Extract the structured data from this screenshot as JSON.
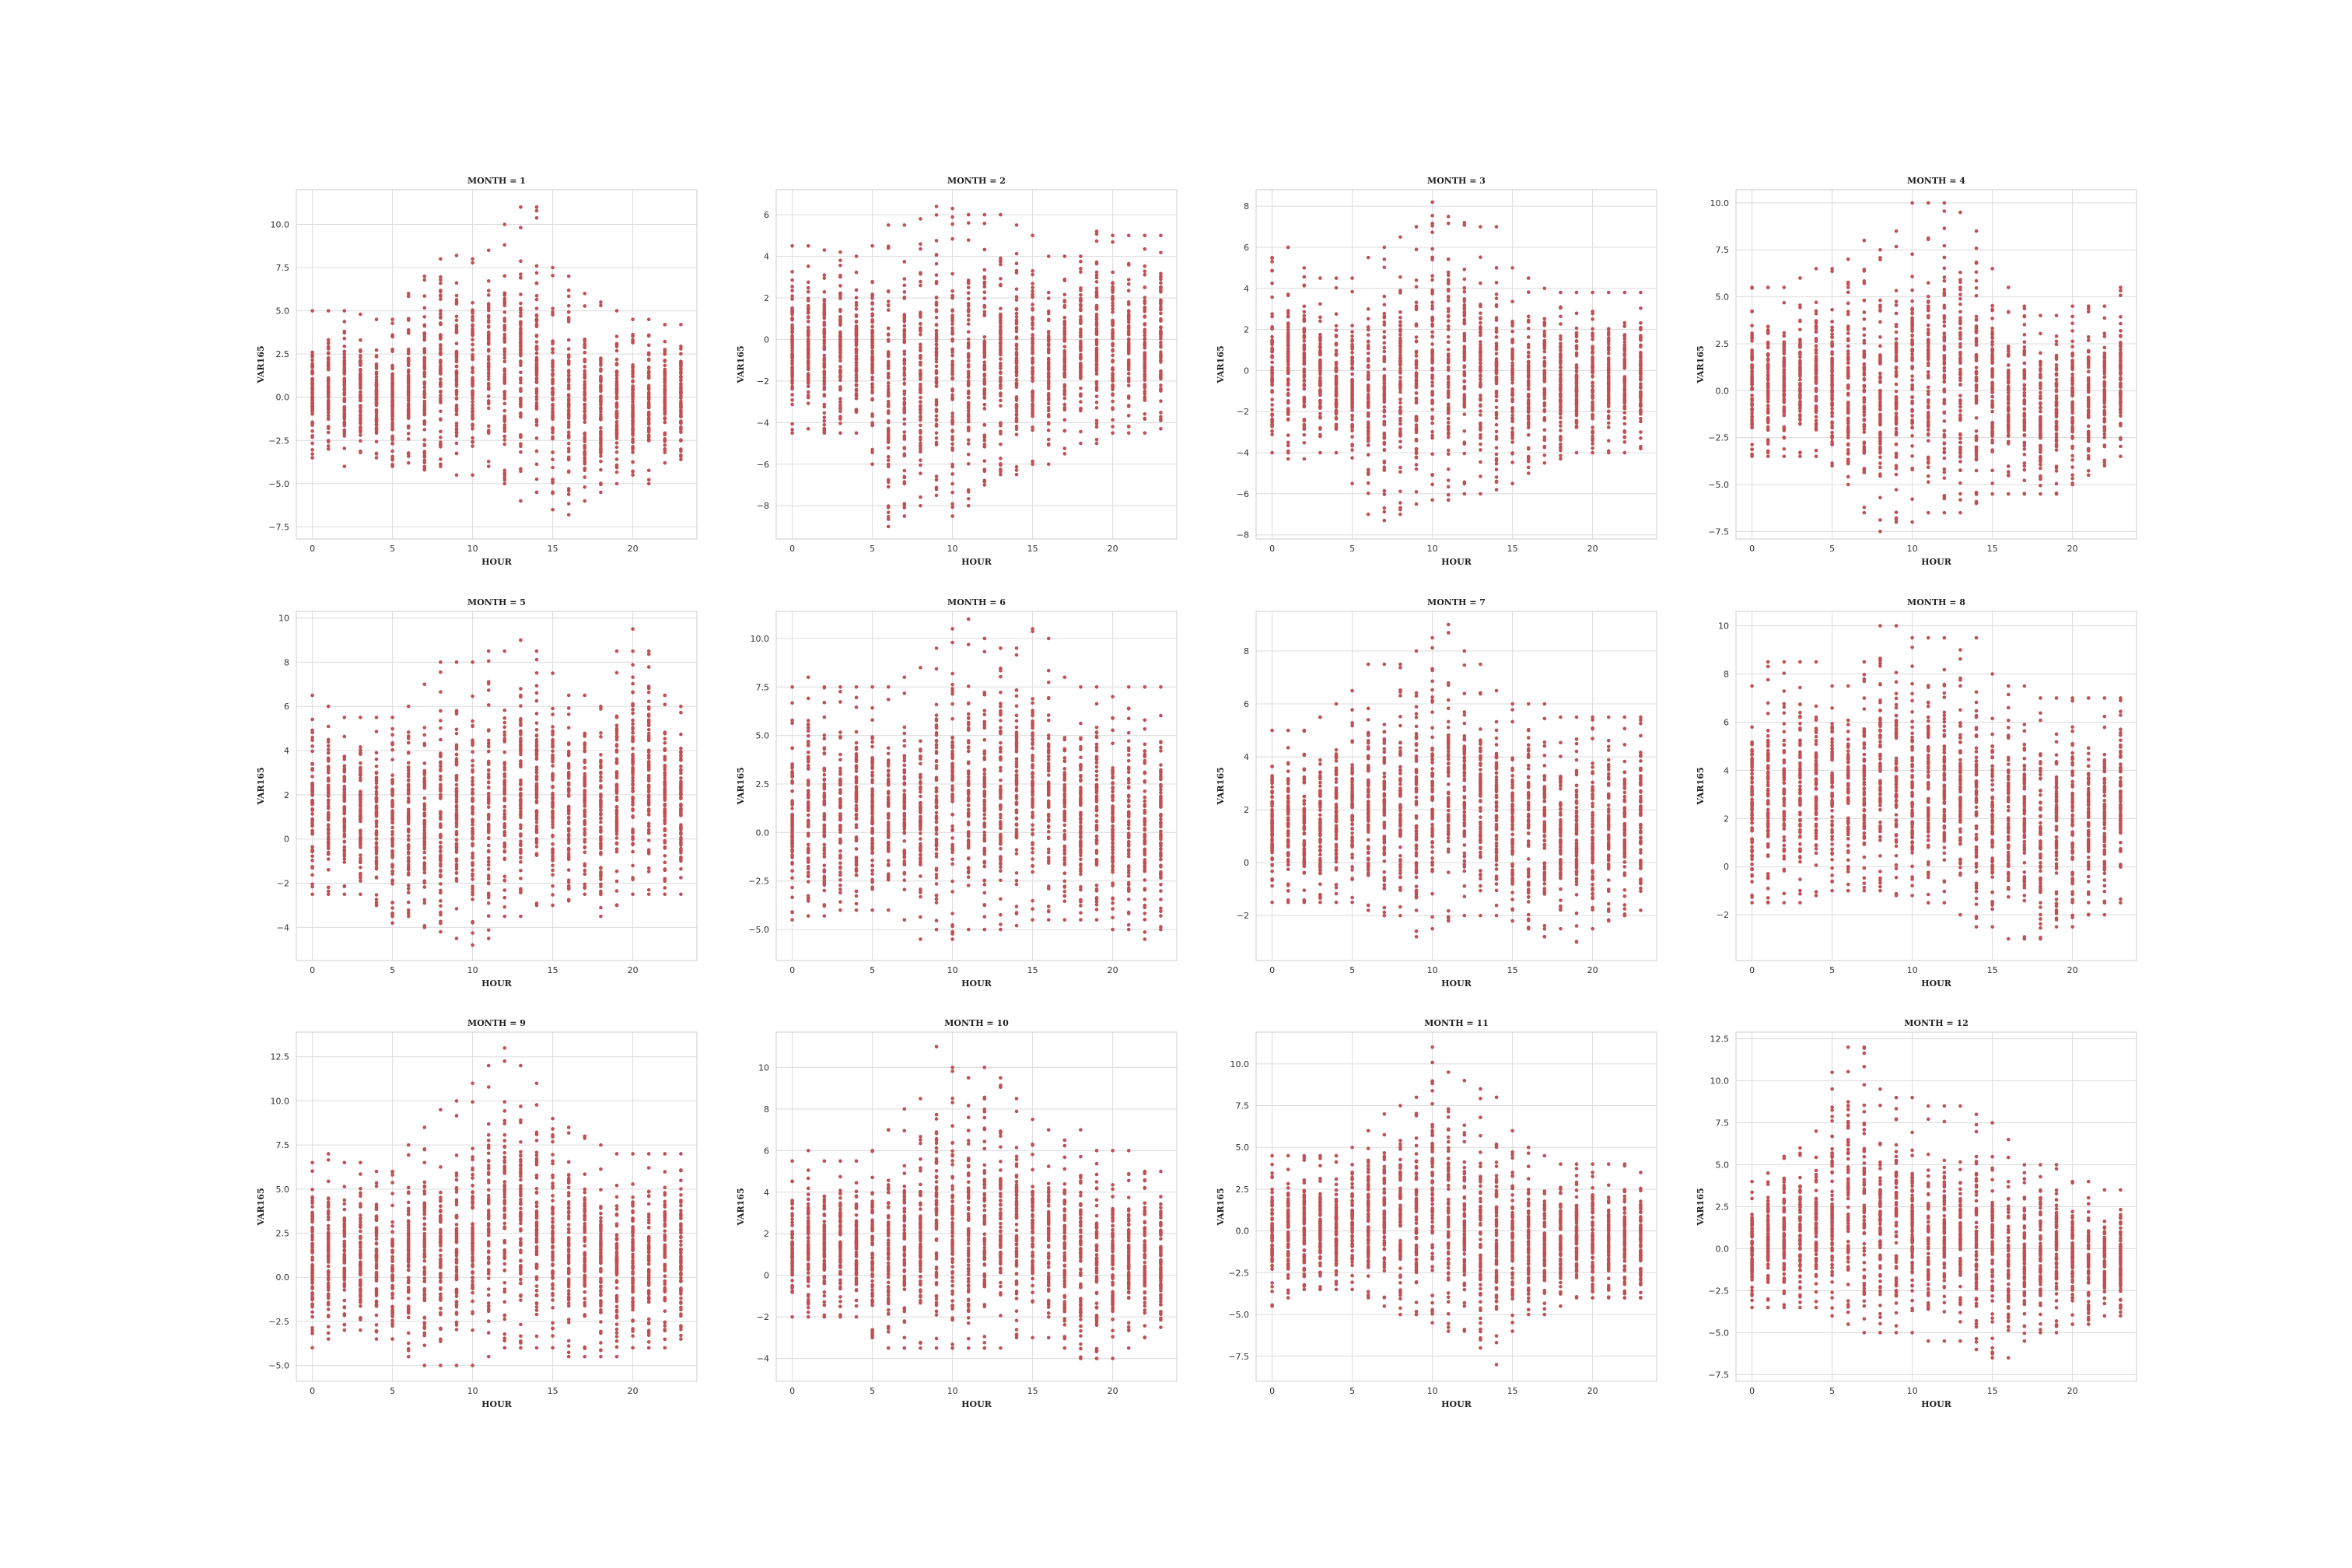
{
  "figure": {
    "background": "#ffffff"
  },
  "chart_data": [
    {
      "type": "scatter",
      "month": 1,
      "title": "MONTH = 1",
      "xlabel": "HOUR",
      "ylabel": "VAR165",
      "xlim": [
        -1,
        24
      ],
      "ylim": [
        -8.2,
        12.0
      ],
      "xticks": [
        0,
        5,
        10,
        15,
        20
      ],
      "yticks": [
        -7.5,
        -5.0,
        -2.5,
        0.0,
        2.5,
        5.0,
        7.5,
        10.0
      ],
      "x": [
        0,
        1,
        2,
        3,
        4,
        5,
        6,
        7,
        8,
        9,
        10,
        11,
        12,
        13,
        14,
        15,
        16,
        17,
        18,
        19,
        20,
        21,
        22,
        23
      ],
      "y_min": [
        -3.5,
        -3.0,
        -4.0,
        -3.2,
        -3.5,
        -4.0,
        -3.8,
        -4.2,
        -4.0,
        -4.5,
        -4.5,
        -4.0,
        -5.0,
        -6.0,
        -5.5,
        -6.5,
        -6.8,
        -6.0,
        -5.5,
        -5.0,
        -4.5,
        -5.0,
        -3.8,
        -3.6
      ],
      "y_max": [
        5.0,
        5.0,
        5.0,
        4.8,
        4.5,
        4.5,
        6.0,
        7.0,
        8.0,
        8.2,
        8.0,
        8.5,
        10.0,
        11.0,
        11.0,
        7.5,
        7.0,
        6.0,
        5.5,
        5.0,
        4.5,
        4.5,
        4.2,
        4.2
      ],
      "color": "#c44e52"
    },
    {
      "type": "scatter",
      "month": 2,
      "title": "MONTH = 2",
      "xlabel": "HOUR",
      "ylabel": "VAR165",
      "xlim": [
        -1,
        24
      ],
      "ylim": [
        -9.6,
        7.2
      ],
      "xticks": [
        0,
        5,
        10,
        15,
        20
      ],
      "yticks": [
        -8,
        -6,
        -4,
        -2,
        0,
        2,
        4,
        6
      ],
      "x": [
        0,
        1,
        2,
        3,
        4,
        5,
        6,
        7,
        8,
        9,
        10,
        11,
        12,
        13,
        14,
        15,
        16,
        17,
        18,
        19,
        20,
        21,
        22,
        23
      ],
      "y_min": [
        -4.5,
        -4.3,
        -4.5,
        -4.5,
        -4.5,
        -6.0,
        -9.0,
        -8.5,
        -8.0,
        -7.5,
        -8.5,
        -8.0,
        -7.0,
        -6.5,
        -6.5,
        -6.0,
        -6.0,
        -5.5,
        -5.0,
        -5.0,
        -4.5,
        -4.5,
        -4.5,
        -4.3
      ],
      "y_max": [
        4.5,
        4.5,
        4.3,
        4.2,
        4.0,
        4.5,
        5.5,
        5.5,
        5.8,
        6.4,
        6.3,
        6.0,
        6.0,
        6.0,
        5.5,
        5.0,
        4.0,
        4.0,
        4.0,
        5.2,
        5.0,
        5.0,
        5.0,
        5.0
      ],
      "color": "#c44e52"
    },
    {
      "type": "scatter",
      "month": 3,
      "title": "MONTH = 3",
      "xlabel": "HOUR",
      "ylabel": "VAR165",
      "xlim": [
        -1,
        24
      ],
      "ylim": [
        -8.2,
        8.8
      ],
      "xticks": [
        0,
        5,
        10,
        15,
        20
      ],
      "yticks": [
        -8,
        -6,
        -4,
        -2,
        0,
        2,
        4,
        6,
        8
      ],
      "x": [
        0,
        1,
        2,
        3,
        4,
        5,
        6,
        7,
        8,
        9,
        10,
        11,
        12,
        13,
        14,
        15,
        16,
        17,
        18,
        19,
        20,
        21,
        22,
        23
      ],
      "y_min": [
        -4.0,
        -4.3,
        -4.3,
        -4.0,
        -4.0,
        -5.5,
        -7.0,
        -7.3,
        -7.0,
        -6.5,
        -6.3,
        -6.3,
        -6.0,
        -6.0,
        -5.8,
        -5.5,
        -5.0,
        -4.5,
        -4.3,
        -4.0,
        -4.0,
        -4.0,
        -4.0,
        -3.8
      ],
      "y_max": [
        5.5,
        6.0,
        5.0,
        4.5,
        4.5,
        4.5,
        5.5,
        6.0,
        6.5,
        7.0,
        8.2,
        7.5,
        7.2,
        7.0,
        7.0,
        5.0,
        4.5,
        4.0,
        3.8,
        3.8,
        3.8,
        3.8,
        3.8,
        3.8
      ],
      "color": "#c44e52"
    },
    {
      "type": "scatter",
      "month": 4,
      "title": "MONTH = 4",
      "xlabel": "HOUR",
      "ylabel": "VAR165",
      "xlim": [
        -1,
        24
      ],
      "ylim": [
        -7.9,
        10.7
      ],
      "xticks": [
        0,
        5,
        10,
        15,
        20
      ],
      "yticks": [
        -7.5,
        -5.0,
        -2.5,
        0.0,
        2.5,
        5.0,
        7.5,
        10.0
      ],
      "x": [
        0,
        1,
        2,
        3,
        4,
        5,
        6,
        7,
        8,
        9,
        10,
        11,
        12,
        13,
        14,
        15,
        16,
        17,
        18,
        19,
        20,
        21,
        22,
        23
      ],
      "y_min": [
        -3.5,
        -3.5,
        -3.5,
        -3.5,
        -3.5,
        -4.0,
        -5.0,
        -6.5,
        -7.5,
        -7.0,
        -7.0,
        -6.5,
        -6.5,
        -6.5,
        -6.0,
        -5.5,
        -5.5,
        -5.5,
        -5.5,
        -5.5,
        -5.0,
        -4.5,
        -4.0,
        -3.5
      ],
      "y_max": [
        5.5,
        5.5,
        5.5,
        6.0,
        6.5,
        6.5,
        7.0,
        8.0,
        7.5,
        8.5,
        10.0,
        10.0,
        10.0,
        9.5,
        8.5,
        6.5,
        5.5,
        4.5,
        4.0,
        4.0,
        4.5,
        4.5,
        4.5,
        5.5
      ],
      "color": "#c44e52"
    },
    {
      "type": "scatter",
      "month": 5,
      "title": "MONTH = 5",
      "xlabel": "HOUR",
      "ylabel": "VAR165",
      "xlim": [
        -1,
        24
      ],
      "ylim": [
        -5.5,
        10.3
      ],
      "xticks": [
        0,
        5,
        10,
        15,
        20
      ],
      "yticks": [
        -4,
        -2,
        0,
        2,
        4,
        6,
        8,
        10
      ],
      "x": [
        0,
        1,
        2,
        3,
        4,
        5,
        6,
        7,
        8,
        9,
        10,
        11,
        12,
        13,
        14,
        15,
        16,
        17,
        18,
        19,
        20,
        21,
        22,
        23
      ],
      "y_min": [
        -2.5,
        -2.5,
        -2.5,
        -2.5,
        -3.0,
        -3.8,
        -3.5,
        -4.0,
        -4.2,
        -4.5,
        -4.8,
        -4.5,
        -3.5,
        -3.5,
        -3.0,
        -3.0,
        -2.8,
        -2.5,
        -3.5,
        -3.0,
        -2.5,
        -2.5,
        -2.5,
        -2.5
      ],
      "y_max": [
        6.5,
        6.0,
        5.5,
        5.5,
        5.5,
        5.5,
        6.0,
        7.0,
        8.0,
        8.0,
        8.0,
        8.5,
        8.5,
        9.0,
        8.5,
        7.5,
        6.5,
        6.5,
        6.0,
        8.5,
        9.5,
        8.5,
        6.5,
        6.0
      ],
      "color": "#c44e52"
    },
    {
      "type": "scatter",
      "month": 6,
      "title": "MONTH = 6",
      "xlabel": "HOUR",
      "ylabel": "VAR165",
      "xlim": [
        -1,
        24
      ],
      "ylim": [
        -6.6,
        11.4
      ],
      "xticks": [
        0,
        5,
        10,
        15,
        20
      ],
      "yticks": [
        -5.0,
        -2.5,
        0.0,
        2.5,
        5.0,
        7.5,
        10.0
      ],
      "x": [
        0,
        1,
        2,
        3,
        4,
        5,
        6,
        7,
        8,
        9,
        10,
        11,
        12,
        13,
        14,
        15,
        16,
        17,
        18,
        19,
        20,
        21,
        22,
        23
      ],
      "y_min": [
        -4.5,
        -4.3,
        -4.3,
        -4.0,
        -4.0,
        -4.0,
        -4.0,
        -4.5,
        -5.5,
        -5.0,
        -5.5,
        -5.0,
        -5.0,
        -5.0,
        -4.8,
        -4.5,
        -4.5,
        -4.5,
        -4.5,
        -4.5,
        -5.0,
        -5.0,
        -5.5,
        -5.0
      ],
      "y_max": [
        7.5,
        8.0,
        7.5,
        7.5,
        7.5,
        7.5,
        7.5,
        8.0,
        8.5,
        9.5,
        10.5,
        11.0,
        10.0,
        9.5,
        9.5,
        10.5,
        10.0,
        8.0,
        7.5,
        7.5,
        7.0,
        7.5,
        7.5,
        7.5
      ],
      "color": "#c44e52"
    },
    {
      "type": "scatter",
      "month": 7,
      "title": "MONTH = 7",
      "xlabel": "HOUR",
      "ylabel": "VAR165",
      "xlim": [
        -1,
        24
      ],
      "ylim": [
        -3.7,
        9.5
      ],
      "xticks": [
        0,
        5,
        10,
        15,
        20
      ],
      "yticks": [
        -2,
        0,
        2,
        4,
        6,
        8
      ],
      "x": [
        0,
        1,
        2,
        3,
        4,
        5,
        6,
        7,
        8,
        9,
        10,
        11,
        12,
        13,
        14,
        15,
        16,
        17,
        18,
        19,
        20,
        21,
        22,
        23
      ],
      "y_min": [
        -1.5,
        -1.5,
        -1.5,
        -1.5,
        -1.5,
        -1.5,
        -1.8,
        -2.0,
        -2.0,
        -2.8,
        -2.5,
        -2.2,
        -2.0,
        -2.0,
        -2.0,
        -2.2,
        -2.5,
        -2.8,
        -2.5,
        -3.0,
        -2.5,
        -2.2,
        -2.0,
        -1.8
      ],
      "y_max": [
        5.0,
        5.0,
        5.0,
        5.5,
        6.0,
        6.5,
        7.5,
        7.5,
        7.5,
        8.0,
        8.5,
        9.0,
        8.0,
        7.5,
        6.5,
        6.0,
        6.0,
        6.0,
        5.5,
        5.5,
        5.5,
        5.5,
        5.5,
        5.5
      ],
      "color": "#c44e52"
    },
    {
      "type": "scatter",
      "month": 8,
      "title": "MONTH = 8",
      "xlabel": "HOUR",
      "ylabel": "VAR165",
      "xlim": [
        -1,
        24
      ],
      "ylim": [
        -3.9,
        10.6
      ],
      "xticks": [
        0,
        5,
        10,
        15,
        20
      ],
      "yticks": [
        -2,
        0,
        2,
        4,
        6,
        8,
        10
      ],
      "x": [
        0,
        1,
        2,
        3,
        4,
        5,
        6,
        7,
        8,
        9,
        10,
        11,
        12,
        13,
        14,
        15,
        16,
        17,
        18,
        19,
        20,
        21,
        22,
        23
      ],
      "y_min": [
        -1.5,
        -1.5,
        -1.5,
        -1.5,
        -1.2,
        -1.0,
        -1.0,
        -1.0,
        -1.0,
        -1.2,
        -1.2,
        -1.5,
        -1.5,
        -2.0,
        -2.5,
        -2.5,
        -3.0,
        -3.0,
        -3.0,
        -2.5,
        -2.5,
        -2.0,
        -2.0,
        -1.5
      ],
      "y_max": [
        7.5,
        8.5,
        8.5,
        8.5,
        8.5,
        7.5,
        7.5,
        8.5,
        10.0,
        10.0,
        9.5,
        9.5,
        9.5,
        9.0,
        9.5,
        8.0,
        7.5,
        7.5,
        7.0,
        7.0,
        7.0,
        7.0,
        7.0,
        7.0
      ],
      "color": "#c44e52"
    },
    {
      "type": "scatter",
      "month": 9,
      "title": "MONTH = 9",
      "xlabel": "HOUR",
      "ylabel": "VAR165",
      "xlim": [
        -1,
        24
      ],
      "ylim": [
        -5.9,
        13.9
      ],
      "xticks": [
        0,
        5,
        10,
        15,
        20
      ],
      "yticks": [
        -5.0,
        -2.5,
        0.0,
        2.5,
        5.0,
        7.5,
        10.0,
        12.5
      ],
      "x": [
        0,
        1,
        2,
        3,
        4,
        5,
        6,
        7,
        8,
        9,
        10,
        11,
        12,
        13,
        14,
        15,
        16,
        17,
        18,
        19,
        20,
        21,
        22,
        23
      ],
      "y_min": [
        -4.0,
        -3.5,
        -3.0,
        -3.0,
        -3.5,
        -3.5,
        -4.5,
        -5.0,
        -5.0,
        -5.0,
        -5.0,
        -4.5,
        -4.0,
        -4.0,
        -4.0,
        -4.0,
        -4.5,
        -4.5,
        -4.5,
        -4.5,
        -4.0,
        -4.0,
        -4.0,
        -3.5
      ],
      "y_max": [
        6.5,
        7.0,
        6.5,
        6.5,
        6.0,
        6.0,
        7.5,
        8.5,
        9.5,
        10.0,
        11.0,
        12.0,
        13.0,
        12.0,
        11.0,
        9.0,
        8.5,
        8.0,
        7.5,
        7.0,
        7.0,
        7.0,
        7.0,
        7.0
      ],
      "color": "#c44e52"
    },
    {
      "type": "scatter",
      "month": 10,
      "title": "MONTH = 10",
      "xlabel": "HOUR",
      "ylabel": "VAR165",
      "xlim": [
        -1,
        24
      ],
      "ylim": [
        -5.1,
        11.7
      ],
      "xticks": [
        0,
        5,
        10,
        15,
        20
      ],
      "yticks": [
        -4,
        -2,
        0,
        2,
        4,
        6,
        8,
        10
      ],
      "x": [
        0,
        1,
        2,
        3,
        4,
        5,
        6,
        7,
        8,
        9,
        10,
        11,
        12,
        13,
        14,
        15,
        16,
        17,
        18,
        19,
        20,
        21,
        22,
        23
      ],
      "y_min": [
        -2.0,
        -2.0,
        -2.0,
        -2.0,
        -2.0,
        -3.0,
        -3.5,
        -3.5,
        -3.5,
        -3.5,
        -3.5,
        -3.5,
        -3.5,
        -3.5,
        -3.0,
        -3.0,
        -3.0,
        -3.5,
        -4.0,
        -4.0,
        -4.0,
        -3.5,
        -3.0,
        -2.5
      ],
      "y_max": [
        5.5,
        6.0,
        5.5,
        5.5,
        5.5,
        6.0,
        7.0,
        8.0,
        8.5,
        11.0,
        10.0,
        9.5,
        10.0,
        9.5,
        8.5,
        7.5,
        7.0,
        6.5,
        7.0,
        6.0,
        6.0,
        6.0,
        5.0,
        5.0
      ],
      "color": "#c44e52"
    },
    {
      "type": "scatter",
      "month": 11,
      "title": "MONTH = 11",
      "xlabel": "HOUR",
      "ylabel": "VAR165",
      "xlim": [
        -1,
        24
      ],
      "ylim": [
        -9.0,
        11.9
      ],
      "xticks": [
        0,
        5,
        10,
        15,
        20
      ],
      "yticks": [
        -7.5,
        -5.0,
        -2.5,
        0.0,
        2.5,
        5.0,
        7.5,
        10.0
      ],
      "x": [
        0,
        1,
        2,
        3,
        4,
        5,
        6,
        7,
        8,
        9,
        10,
        11,
        12,
        13,
        14,
        15,
        16,
        17,
        18,
        19,
        20,
        21,
        22,
        23
      ],
      "y_min": [
        -4.5,
        -4.0,
        -3.5,
        -3.5,
        -3.5,
        -3.5,
        -4.0,
        -4.5,
        -5.0,
        -5.0,
        -5.5,
        -6.0,
        -6.0,
        -7.0,
        -8.0,
        -6.0,
        -5.0,
        -5.0,
        -4.5,
        -4.0,
        -4.0,
        -4.0,
        -4.0,
        -4.0
      ],
      "y_max": [
        4.5,
        4.5,
        4.5,
        4.5,
        4.5,
        5.0,
        6.0,
        7.0,
        7.5,
        8.0,
        11.0,
        9.5,
        9.0,
        8.5,
        8.0,
        6.0,
        5.0,
        4.5,
        4.0,
        4.0,
        4.0,
        4.0,
        4.0,
        3.5
      ],
      "color": "#c44e52"
    },
    {
      "type": "scatter",
      "month": 12,
      "title": "MONTH = 12",
      "xlabel": "HOUR",
      "ylabel": "VAR165",
      "xlim": [
        -1,
        24
      ],
      "ylim": [
        -7.9,
        12.9
      ],
      "xticks": [
        0,
        5,
        10,
        15,
        20
      ],
      "yticks": [
        -7.5,
        -5.0,
        -2.5,
        0.0,
        2.5,
        5.0,
        7.5,
        10.0,
        12.5
      ],
      "x": [
        0,
        1,
        2,
        3,
        4,
        5,
        6,
        7,
        8,
        9,
        10,
        11,
        12,
        13,
        14,
        15,
        16,
        17,
        18,
        19,
        20,
        21,
        22,
        23
      ],
      "y_min": [
        -3.5,
        -3.5,
        -3.5,
        -3.5,
        -3.5,
        -4.0,
        -4.5,
        -5.0,
        -5.0,
        -5.0,
        -5.0,
        -5.5,
        -5.5,
        -5.5,
        -6.0,
        -6.5,
        -6.5,
        -5.5,
        -5.0,
        -5.0,
        -4.5,
        -4.5,
        -4.0,
        -4.0
      ],
      "y_max": [
        4.0,
        4.5,
        5.5,
        6.0,
        7.0,
        10.5,
        12.0,
        12.0,
        9.5,
        9.0,
        9.0,
        8.5,
        8.5,
        8.5,
        8.0,
        7.5,
        6.5,
        5.0,
        5.0,
        5.0,
        4.0,
        4.0,
        3.5,
        3.5
      ],
      "color": "#c44e52"
    }
  ]
}
